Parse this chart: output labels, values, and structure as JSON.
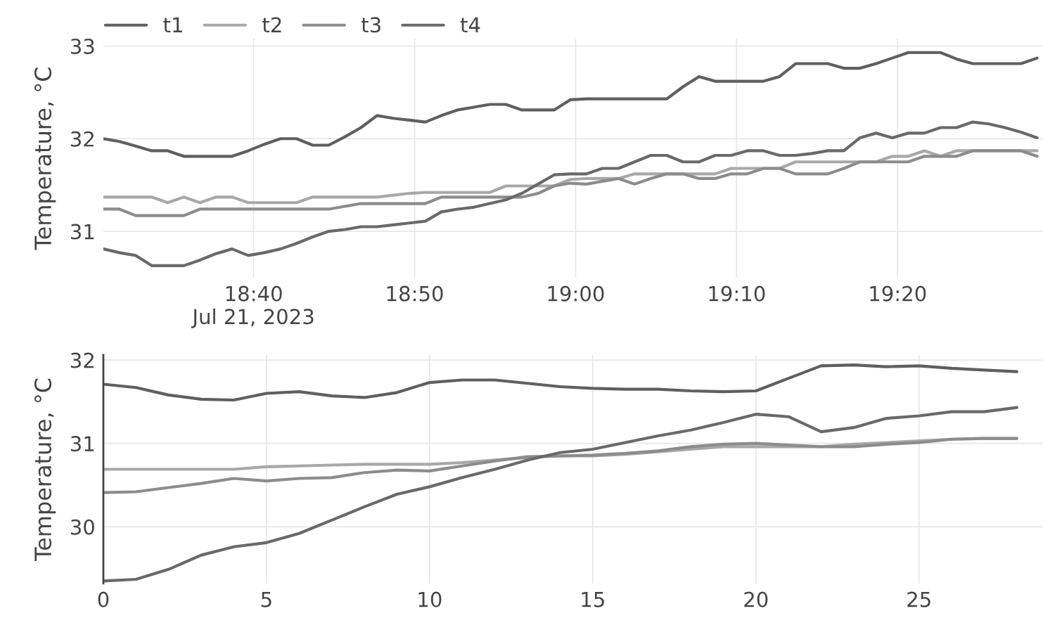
{
  "chart_data": [
    {
      "type": "line",
      "ylabel": "Temperature, °C",
      "legend": "top left",
      "grid": true,
      "x": [
        "2023-07-21T18:30:40",
        "2023-07-21T18:31:40",
        "2023-07-21T18:32:40",
        "2023-07-21T18:33:40",
        "2023-07-21T18:34:40",
        "2023-07-21T18:35:40",
        "2023-07-21T18:36:40",
        "2023-07-21T18:37:40",
        "2023-07-21T18:38:40",
        "2023-07-21T18:39:40",
        "2023-07-21T18:40:40",
        "2023-07-21T18:41:40",
        "2023-07-21T18:42:40",
        "2023-07-21T18:43:40",
        "2023-07-21T18:44:40",
        "2023-07-21T18:45:40",
        "2023-07-21T18:46:40",
        "2023-07-21T18:47:40",
        "2023-07-21T18:48:40",
        "2023-07-21T18:49:40",
        "2023-07-21T18:50:40",
        "2023-07-21T18:51:40",
        "2023-07-21T18:52:40",
        "2023-07-21T18:53:40",
        "2023-07-21T18:54:40",
        "2023-07-21T18:55:40",
        "2023-07-21T18:56:40",
        "2023-07-21T18:57:40",
        "2023-07-21T18:58:40",
        "2023-07-21T18:59:40",
        "2023-07-21T19:00:40",
        "2023-07-21T19:01:40",
        "2023-07-21T19:02:40",
        "2023-07-21T19:03:40",
        "2023-07-21T19:04:40",
        "2023-07-21T19:05:40",
        "2023-07-21T19:06:40",
        "2023-07-21T19:07:40",
        "2023-07-21T19:08:40",
        "2023-07-21T19:09:40",
        "2023-07-21T19:10:40",
        "2023-07-21T19:11:40",
        "2023-07-21T19:12:40",
        "2023-07-21T19:13:40",
        "2023-07-21T19:14:40",
        "2023-07-21T19:15:40",
        "2023-07-21T19:16:40",
        "2023-07-21T19:17:40",
        "2023-07-21T19:18:40",
        "2023-07-21T19:19:40",
        "2023-07-21T19:20:40",
        "2023-07-21T19:21:40",
        "2023-07-21T19:22:40",
        "2023-07-21T19:23:40",
        "2023-07-21T19:24:40",
        "2023-07-21T19:25:40",
        "2023-07-21T19:26:40",
        "2023-07-21T19:27:40",
        "2023-07-21T19:28:40"
      ],
      "xlim": [
        "2023-07-21T18:30:40",
        "2023-07-21T19:29:02"
      ],
      "xticks": [
        {
          "value": "2023-07-21T18:40",
          "label": "18:40\nJul 21, 2023"
        },
        {
          "value": "2023-07-21T18:50",
          "label": "18:50"
        },
        {
          "value": "2023-07-21T19:00",
          "label": "19:00"
        },
        {
          "value": "2023-07-21T19:10",
          "label": "19:10"
        },
        {
          "value": "2023-07-21T19:20",
          "label": "19:20"
        }
      ],
      "ylim": [
        30.5,
        33.08
      ],
      "yticks": [
        31,
        32,
        33
      ],
      "series": [
        {
          "name": "t1",
          "color": "#5f5f5f",
          "values": [
            32.0,
            31.97,
            31.92,
            31.87,
            31.87,
            31.81,
            31.81,
            31.81,
            31.81,
            31.87,
            31.94,
            32.0,
            32.0,
            31.93,
            31.93,
            32.02,
            32.12,
            32.25,
            32.22,
            32.2,
            32.18,
            32.25,
            32.31,
            32.34,
            32.37,
            32.37,
            32.31,
            32.31,
            32.31,
            32.42,
            32.43,
            32.43,
            32.43,
            32.43,
            32.43,
            32.43,
            32.56,
            32.67,
            32.62,
            32.62,
            32.62,
            32.62,
            32.67,
            32.81,
            32.81,
            32.81,
            32.76,
            32.76,
            32.81,
            32.87,
            32.93,
            32.93,
            32.93,
            32.86,
            32.81,
            32.81,
            32.81,
            32.81,
            32.87
          ]
        },
        {
          "name": "t2",
          "color": "#a8a8a8",
          "values": [
            31.37,
            31.37,
            31.37,
            31.37,
            31.31,
            31.37,
            31.31,
            31.37,
            31.37,
            31.31,
            31.31,
            31.31,
            31.31,
            31.37,
            31.37,
            31.37,
            31.37,
            31.37,
            31.39,
            31.41,
            31.42,
            31.42,
            31.42,
            31.42,
            31.42,
            31.49,
            31.49,
            31.49,
            31.49,
            31.56,
            31.57,
            31.57,
            31.57,
            31.62,
            31.62,
            31.62,
            31.62,
            31.62,
            31.62,
            31.68,
            31.68,
            31.68,
            31.68,
            31.75,
            31.75,
            31.75,
            31.75,
            31.75,
            31.75,
            31.81,
            31.81,
            31.87,
            31.81,
            31.87,
            31.87,
            31.87,
            31.87,
            31.87,
            31.87
          ]
        },
        {
          "name": "t3",
          "color": "#8c8c8c",
          "values": [
            31.24,
            31.24,
            31.17,
            31.17,
            31.17,
            31.17,
            31.24,
            31.24,
            31.24,
            31.24,
            31.24,
            31.24,
            31.24,
            31.24,
            31.24,
            31.27,
            31.3,
            31.3,
            31.3,
            31.3,
            31.3,
            31.37,
            31.37,
            31.37,
            31.37,
            31.37,
            31.37,
            31.41,
            31.49,
            31.52,
            31.51,
            31.54,
            31.57,
            31.51,
            31.57,
            31.62,
            31.62,
            31.57,
            31.57,
            31.62,
            31.62,
            31.68,
            31.68,
            31.62,
            31.62,
            31.62,
            31.68,
            31.75,
            31.75,
            31.75,
            31.75,
            31.81,
            31.81,
            31.81,
            31.87,
            31.87,
            31.87,
            31.87,
            31.81
          ]
        },
        {
          "name": "t4",
          "color": "#696969",
          "values": [
            30.81,
            30.77,
            30.74,
            30.63,
            30.63,
            30.63,
            30.69,
            30.76,
            30.81,
            30.74,
            30.77,
            30.81,
            30.87,
            30.94,
            31.0,
            31.02,
            31.05,
            31.05,
            31.07,
            31.09,
            31.11,
            31.21,
            31.24,
            31.26,
            31.3,
            31.34,
            31.41,
            31.51,
            31.61,
            31.62,
            31.62,
            31.68,
            31.68,
            31.75,
            31.82,
            31.82,
            31.75,
            31.75,
            31.82,
            31.82,
            31.87,
            31.87,
            31.82,
            31.82,
            31.84,
            31.87,
            31.87,
            32.01,
            32.06,
            32.01,
            32.06,
            32.06,
            32.12,
            32.12,
            32.18,
            32.16,
            32.12,
            32.07,
            32.01
          ]
        }
      ]
    },
    {
      "type": "line",
      "ylabel": "Temperature, °C",
      "grid": true,
      "x": [
        0,
        1,
        2,
        3,
        4,
        5,
        6,
        7,
        8,
        9,
        10,
        11,
        12,
        13,
        14,
        15,
        16,
        17,
        18,
        19,
        20,
        21,
        22,
        23,
        24,
        25,
        26,
        27,
        28
      ],
      "xlim": [
        0,
        28.8
      ],
      "xticks": [
        0,
        5,
        10,
        15,
        20,
        25
      ],
      "ylim": [
        29.32,
        32.06
      ],
      "yticks": [
        30,
        31,
        32
      ],
      "series": [
        {
          "color": "#5f5f5f",
          "values": [
            31.71,
            31.67,
            31.58,
            31.53,
            31.52,
            31.6,
            31.62,
            31.57,
            31.55,
            31.61,
            31.73,
            31.76,
            31.76,
            31.72,
            31.68,
            31.66,
            31.65,
            31.65,
            31.63,
            31.62,
            31.63,
            31.78,
            31.93,
            31.94,
            31.92,
            31.93,
            31.9,
            31.88,
            31.86
          ]
        },
        {
          "color": "#a8a8a8",
          "values": [
            30.69,
            30.69,
            30.69,
            30.69,
            30.69,
            30.72,
            30.73,
            30.74,
            30.75,
            30.75,
            30.75,
            30.77,
            30.8,
            30.83,
            30.85,
            30.85,
            30.87,
            30.9,
            30.93,
            30.96,
            30.96,
            30.96,
            30.96,
            30.99,
            31.01,
            31.03,
            31.05,
            31.06,
            31.06
          ]
        },
        {
          "color": "#8c8c8c",
          "values": [
            30.41,
            30.42,
            30.47,
            30.52,
            30.58,
            30.55,
            30.58,
            30.59,
            30.65,
            30.68,
            30.67,
            30.73,
            30.79,
            30.84,
            30.85,
            30.86,
            30.88,
            30.91,
            30.96,
            30.99,
            31.0,
            30.98,
            30.96,
            30.96,
            30.99,
            31.01,
            31.05,
            31.06,
            31.06
          ]
        },
        {
          "color": "#696969",
          "values": [
            29.35,
            29.37,
            29.49,
            29.66,
            29.76,
            29.81,
            29.92,
            30.08,
            30.24,
            30.39,
            30.48,
            30.59,
            30.69,
            30.8,
            30.89,
            30.93,
            31.01,
            31.09,
            31.16,
            31.25,
            31.35,
            31.32,
            31.14,
            31.19,
            31.3,
            31.33,
            31.38,
            31.38,
            31.43
          ]
        }
      ]
    }
  ]
}
